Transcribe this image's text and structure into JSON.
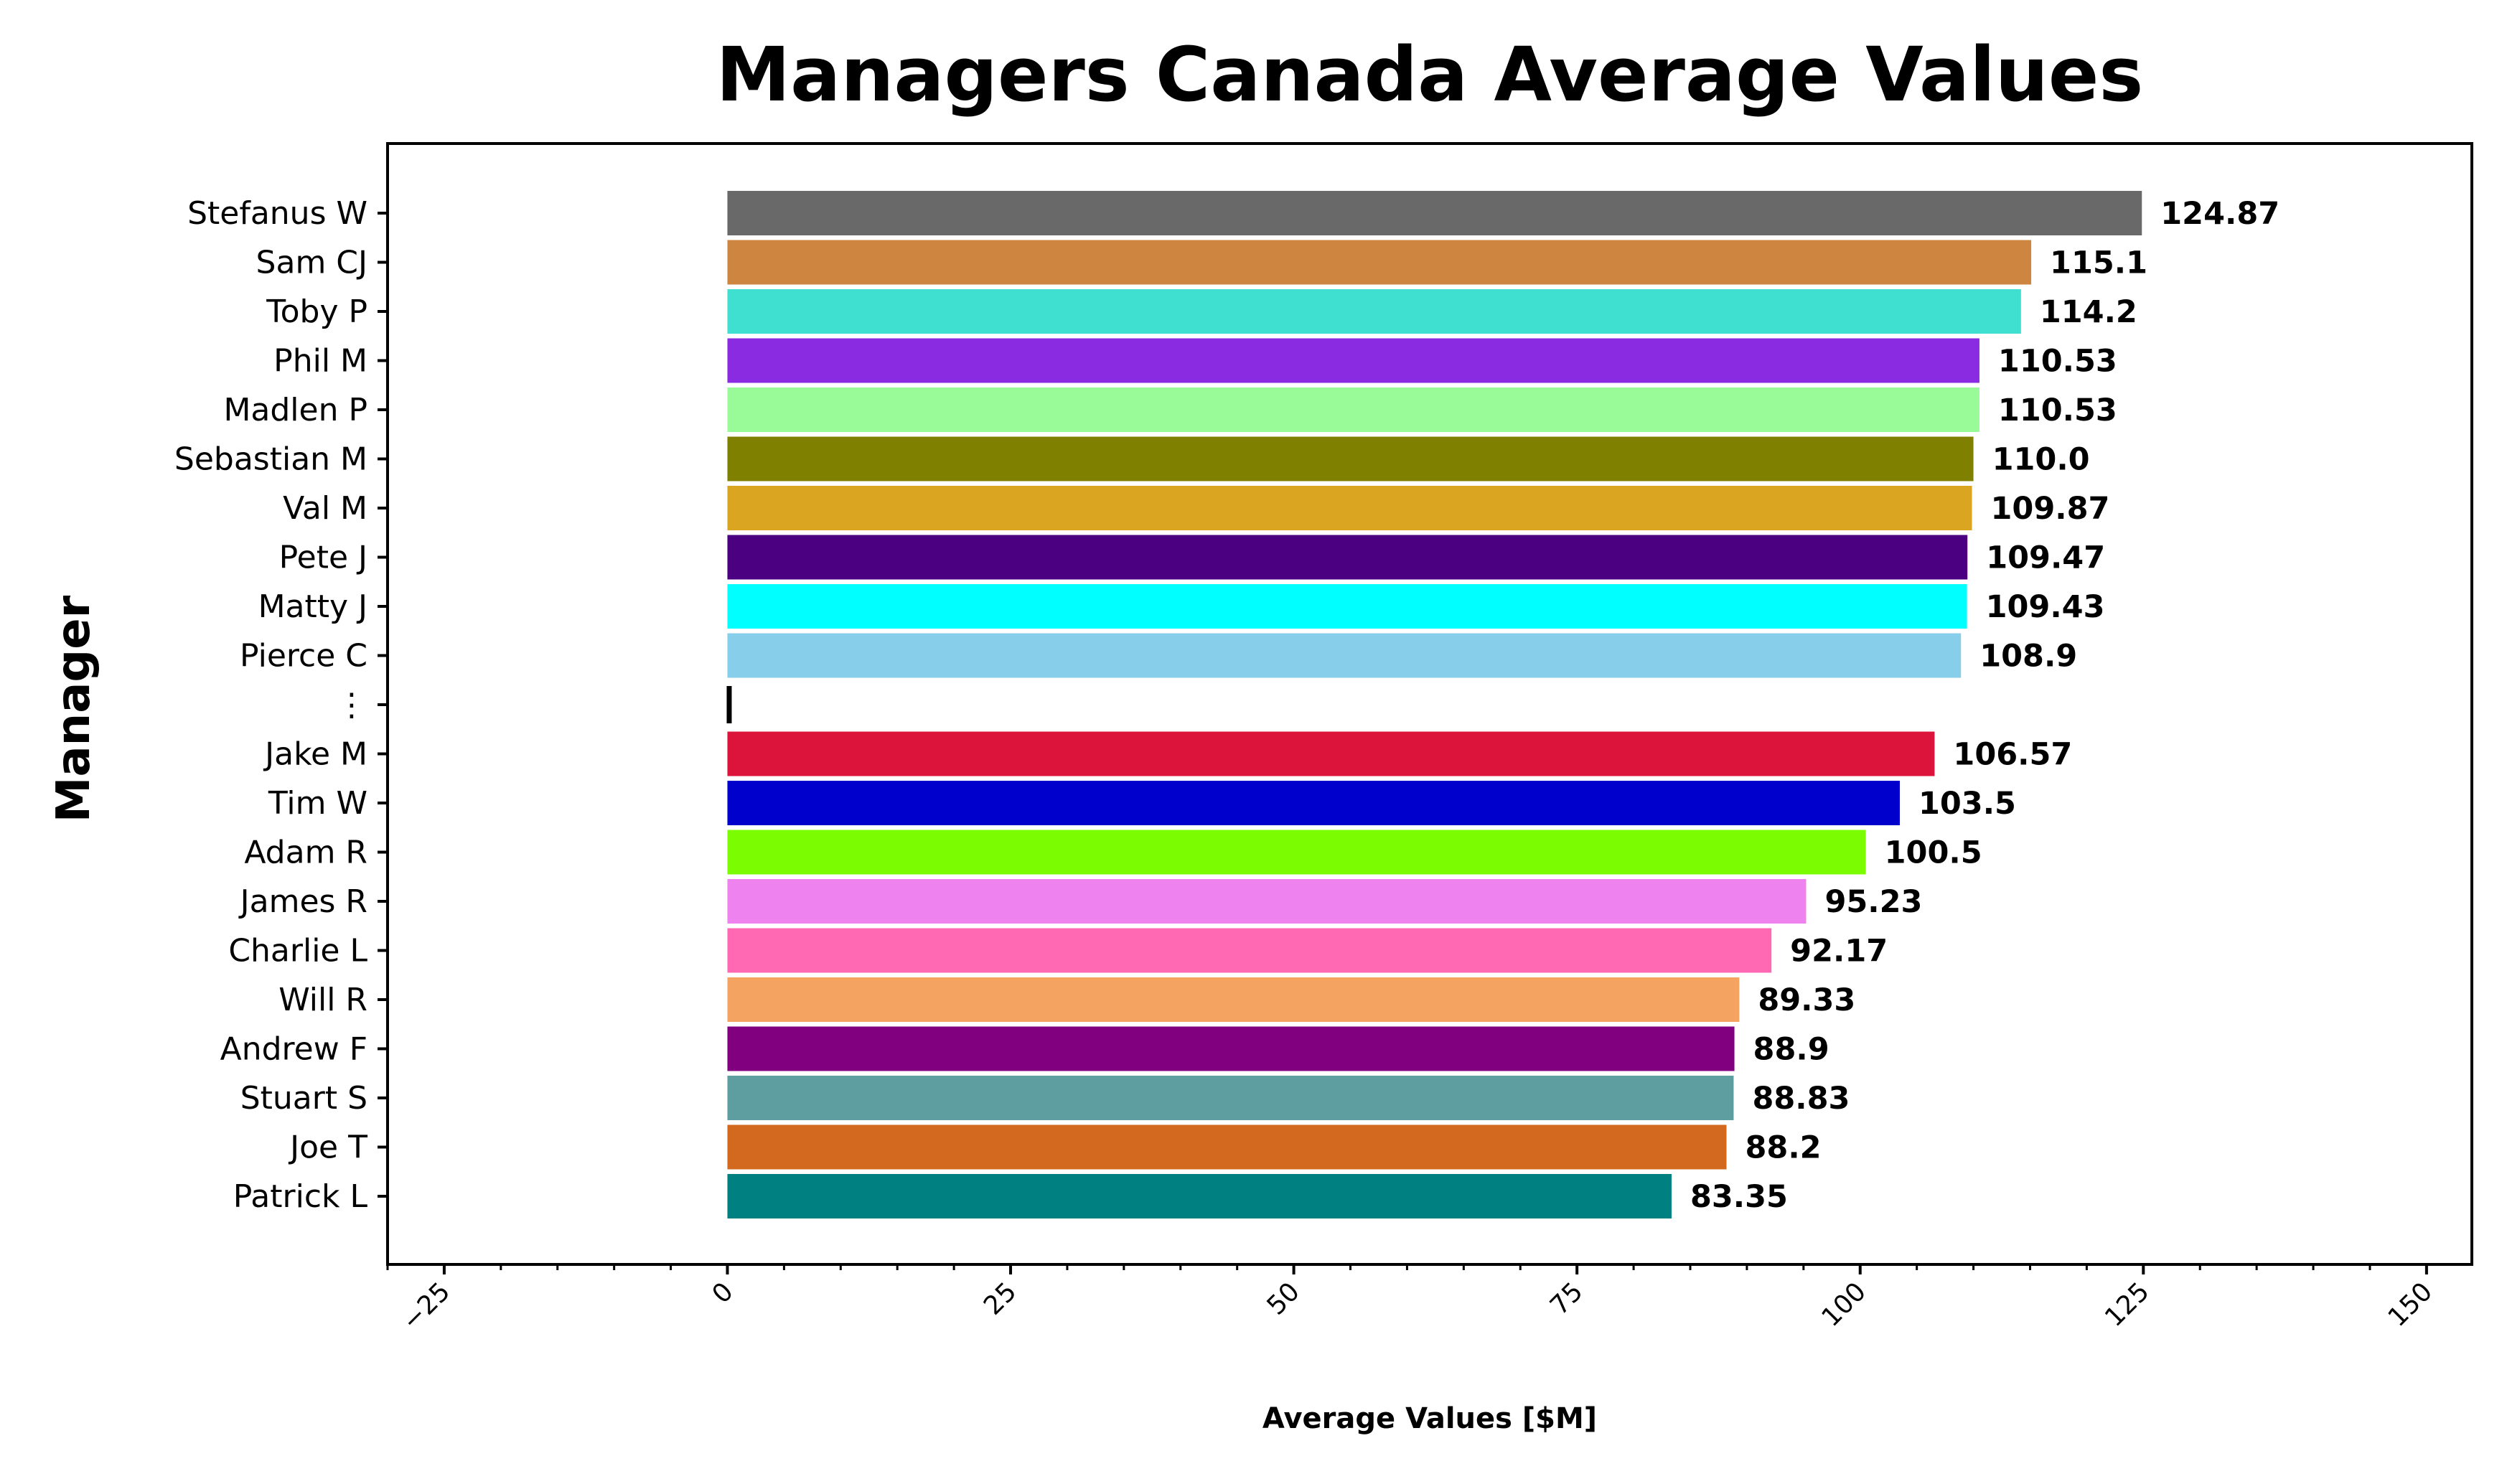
{
  "chart_data": {
    "type": "bar",
    "orientation": "horizontal",
    "title": "Managers Canada Average Values",
    "xlabel": "Average Values [$M]",
    "ylabel": "Manager",
    "xlim": [
      -30,
      154
    ],
    "xticks": [
      -25,
      0,
      25,
      50,
      75,
      100,
      125,
      150
    ],
    "xtick_labels": [
      "−25",
      "0",
      "25",
      "50",
      "75",
      "100",
      "125",
      "150"
    ],
    "grid": false,
    "legend": "none",
    "categories": [
      "Stefanus W",
      "Sam CJ",
      "Toby P",
      "Phil M",
      "Madlen P",
      "Sebastian M",
      "Val M",
      "Pete J",
      "Matty J",
      "Pierce C",
      "⋮",
      "Jake M",
      "Tim W",
      "Adam R",
      "James R",
      "Charlie L",
      "Will R",
      "Andrew F",
      "Stuart S",
      "Joe T",
      "Patrick L"
    ],
    "values": [
      124.87,
      115.1,
      114.2,
      110.53,
      110.53,
      110.0,
      109.87,
      109.47,
      109.43,
      108.9,
      null,
      106.57,
      103.5,
      100.5,
      95.23,
      92.17,
      89.33,
      88.9,
      88.83,
      88.2,
      83.35
    ],
    "value_labels": [
      "124.87",
      "115.1",
      "114.2",
      "110.53",
      "110.53",
      "110.0",
      "109.87",
      "109.47",
      "109.43",
      "108.9",
      "",
      "106.57",
      "103.5",
      "100.5",
      "95.23",
      "92.17",
      "89.33",
      "88.9",
      "88.83",
      "88.2",
      "83.35"
    ],
    "colors": [
      "#696969",
      "#CD853F",
      "#40E0D0",
      "#8A2BE2",
      "#98FB98",
      "#808000",
      "#DAA520",
      "#4B0082",
      "#00FFFF",
      "#87CEEB",
      "#000000",
      "#DC143C",
      "#0000CD",
      "#7CFC00",
      "#EE82EE",
      "#FF69B4",
      "#F4A460",
      "#800080",
      "#5F9EA0",
      "#D2691E",
      "#008080"
    ]
  }
}
